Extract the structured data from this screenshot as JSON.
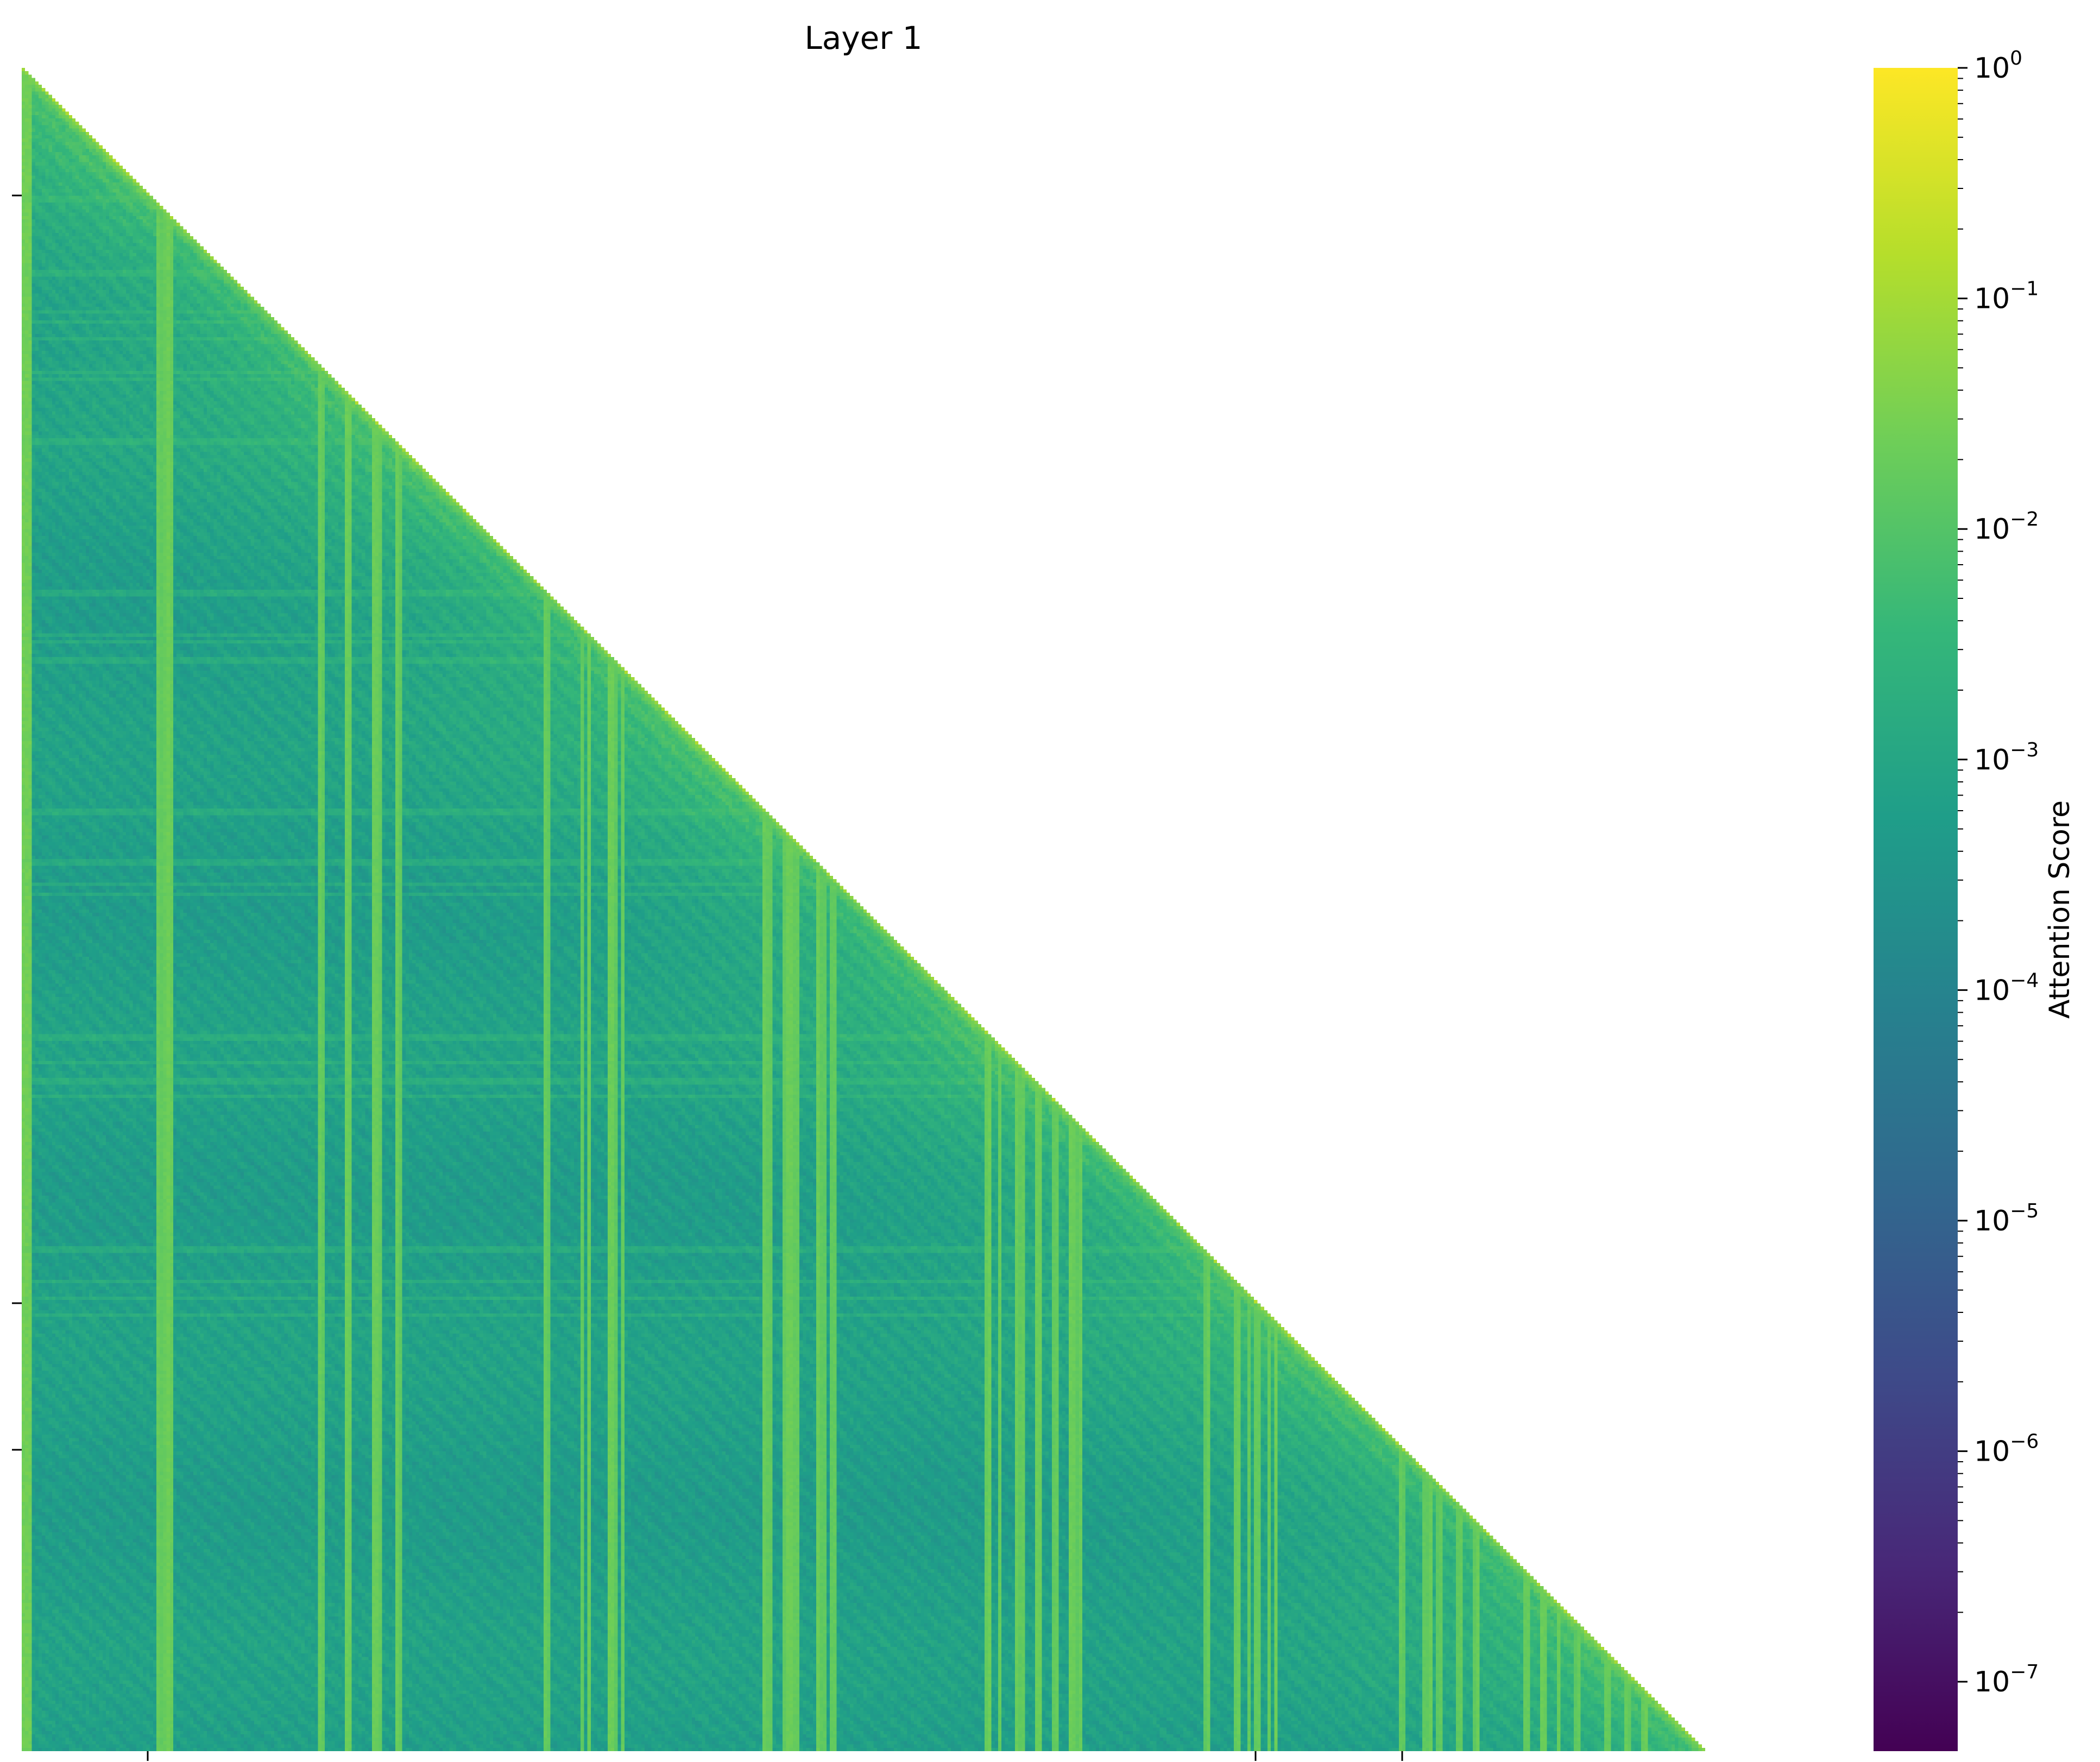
{
  "chart_data": {
    "type": "heatmap",
    "title": "Layer 1",
    "xlabel": "",
    "ylabel": "",
    "x_tick_labels": [
      "",
      "",
      ""
    ],
    "y_tick_labels": [
      "",
      "",
      ""
    ],
    "mask": "lower-triangular (upper triangle blank)",
    "colormap": "viridis",
    "color_scale": "log",
    "colorbar": {
      "label": "Attention Score",
      "range": [
        5e-08,
        1
      ],
      "ticks": [
        {
          "value": 1,
          "base": "10",
          "exp": "0"
        },
        {
          "value": 0.1,
          "base": "10",
          "exp": "−1"
        },
        {
          "value": 0.01,
          "base": "10",
          "exp": "−2"
        },
        {
          "value": 0.001,
          "base": "10",
          "exp": "−3"
        },
        {
          "value": 0.0001,
          "base": "10",
          "exp": "−4"
        },
        {
          "value": 1e-05,
          "base": "10",
          "exp": "−5"
        },
        {
          "value": 1e-06,
          "base": "10",
          "exp": "−6"
        },
        {
          "value": 1e-07,
          "base": "10",
          "exp": "−7"
        }
      ]
    },
    "matrix_size": 500,
    "value_description": {
      "diagonal": 0.05,
      "first_column": 0.03,
      "typical_background": 0.0005,
      "darkest_regions": 8e-05,
      "bright_stripe_columns": 0.015
    },
    "colors": {
      "viridis_stops": [
        "#440154",
        "#482878",
        "#3e4a89",
        "#31688e",
        "#26828e",
        "#1f9e89",
        "#35b779",
        "#6ece58",
        "#b5de2b",
        "#fde725"
      ]
    }
  }
}
